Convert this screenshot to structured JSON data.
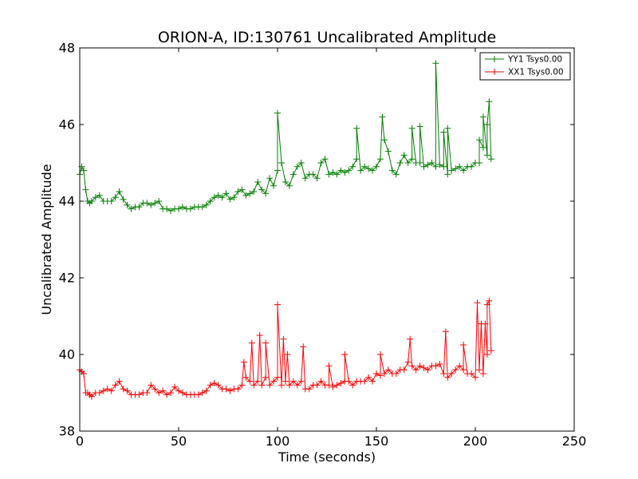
{
  "chart_data": {
    "type": "line",
    "title": "ORION-A, ID:130761 Uncalibrated Amplitude",
    "xlabel": "Time (seconds)",
    "ylabel": "Uncalibrated Amplitude",
    "xlim": [
      0,
      250
    ],
    "ylim": [
      38,
      48
    ],
    "x_ticks": [
      "0",
      "50",
      "100",
      "150",
      "200",
      "250"
    ],
    "y_ticks": [
      "38",
      "40",
      "42",
      "44",
      "46",
      "48"
    ],
    "grid": false,
    "legend_position": "top-right",
    "marker": "plus",
    "series": [
      {
        "name": "YY1 Tsys0.00",
        "color": "#008000",
        "x": [
          0,
          1,
          2,
          3,
          4,
          5,
          6,
          8,
          10,
          12,
          14,
          16,
          18,
          20,
          22,
          24,
          26,
          28,
          30,
          32,
          34,
          36,
          38,
          40,
          42,
          44,
          46,
          48,
          50,
          52,
          54,
          56,
          58,
          60,
          62,
          64,
          66,
          68,
          70,
          72,
          74,
          76,
          78,
          80,
          82,
          84,
          86,
          88,
          90,
          92,
          94,
          96,
          98,
          100,
          102,
          104,
          106,
          108,
          110,
          112,
          114,
          116,
          118,
          120,
          122,
          124,
          126,
          128,
          130,
          132,
          134,
          136,
          138,
          140,
          142,
          144,
          146,
          148,
          150,
          152,
          154,
          156,
          158,
          160,
          162,
          164,
          166,
          168,
          170,
          172,
          174,
          176,
          178,
          180,
          182,
          184,
          186,
          188,
          190,
          192,
          194,
          196,
          198,
          200,
          202,
          204,
          206,
          208
        ],
        "values": [
          44.7,
          44.9,
          44.8,
          44.3,
          44.0,
          43.95,
          44.0,
          44.1,
          44.15,
          44.0,
          44.0,
          44.0,
          44.1,
          44.25,
          44.05,
          43.9,
          43.8,
          43.85,
          43.85,
          43.95,
          43.95,
          43.9,
          43.95,
          44.0,
          43.8,
          43.8,
          43.75,
          43.8,
          43.8,
          43.85,
          43.8,
          43.8,
          43.85,
          43.85,
          43.85,
          43.9,
          44.0,
          44.1,
          44.15,
          44.1,
          44.2,
          44.05,
          44.1,
          44.25,
          44.3,
          44.15,
          44.2,
          44.25,
          44.5,
          44.3,
          44.2,
          44.6,
          44.4,
          44.8,
          45.0,
          44.5,
          44.4,
          44.7,
          44.9,
          45.0,
          44.6,
          44.7,
          44.7,
          44.6,
          45.0,
          45.1,
          44.7,
          44.75,
          44.7,
          44.8,
          44.75,
          44.8,
          44.9,
          45.1,
          44.8,
          44.9,
          44.85,
          44.8,
          44.9,
          45.1,
          45.6,
          45.3,
          44.8,
          44.7,
          45.0,
          45.2,
          45.0,
          45.1,
          45.0,
          45.0,
          44.9,
          44.95,
          45.0,
          44.9,
          44.95,
          44.9,
          44.7,
          44.8,
          44.85,
          44.9,
          44.8,
          44.9,
          44.9,
          45.0,
          45.0,
          45.4,
          45.2,
          45.1
        ],
        "spikes": [
          [
            100,
            46.3
          ],
          [
            140,
            45.9
          ],
          [
            153,
            46.2
          ],
          [
            168,
            45.9
          ],
          [
            172,
            45.95
          ],
          [
            180,
            47.6
          ],
          [
            184,
            45.8
          ],
          [
            186,
            45.9
          ],
          [
            202,
            45.6
          ],
          [
            204,
            46.2
          ],
          [
            206,
            46.0
          ],
          [
            207,
            46.6
          ]
        ]
      },
      {
        "name": "XX1 Tsys0.00",
        "color": "#ff0000",
        "x": [
          0,
          1,
          2,
          3,
          4,
          5,
          6,
          8,
          10,
          12,
          14,
          16,
          18,
          20,
          22,
          24,
          26,
          28,
          30,
          32,
          34,
          36,
          38,
          40,
          42,
          44,
          46,
          48,
          50,
          52,
          54,
          56,
          58,
          60,
          62,
          64,
          66,
          68,
          70,
          72,
          74,
          76,
          78,
          80,
          82,
          84,
          86,
          88,
          90,
          92,
          94,
          96,
          98,
          100,
          102,
          104,
          106,
          108,
          110,
          112,
          114,
          116,
          118,
          120,
          122,
          124,
          126,
          128,
          130,
          132,
          134,
          136,
          138,
          140,
          142,
          144,
          146,
          148,
          150,
          152,
          154,
          156,
          158,
          160,
          162,
          164,
          166,
          168,
          170,
          172,
          174,
          176,
          178,
          180,
          182,
          184,
          186,
          188,
          190,
          192,
          194,
          196,
          198,
          200,
          202,
          204,
          206,
          208
        ],
        "values": [
          39.6,
          39.55,
          39.5,
          39.0,
          39.0,
          38.95,
          38.9,
          39.0,
          39.0,
          39.05,
          39.1,
          39.05,
          39.2,
          39.3,
          39.1,
          39.05,
          38.95,
          38.95,
          38.95,
          39.0,
          39.0,
          39.2,
          39.1,
          39.0,
          39.05,
          38.95,
          39.0,
          39.15,
          39.05,
          39.0,
          38.95,
          38.95,
          38.95,
          38.95,
          39.0,
          39.05,
          39.2,
          39.25,
          39.2,
          39.1,
          39.1,
          39.05,
          39.1,
          39.1,
          39.2,
          39.4,
          39.3,
          39.2,
          39.3,
          39.2,
          39.4,
          39.2,
          39.3,
          39.4,
          39.2,
          39.3,
          39.2,
          39.3,
          39.2,
          39.3,
          39.1,
          39.1,
          39.2,
          39.2,
          39.3,
          39.2,
          39.2,
          39.15,
          39.2,
          39.25,
          39.3,
          39.3,
          39.2,
          39.3,
          39.3,
          39.3,
          39.4,
          39.3,
          39.5,
          39.45,
          39.5,
          39.6,
          39.5,
          39.5,
          39.6,
          39.6,
          39.8,
          39.7,
          39.6,
          39.7,
          39.65,
          39.6,
          39.7,
          39.7,
          39.75,
          39.5,
          39.4,
          39.5,
          39.6,
          39.7,
          39.6,
          39.5,
          39.5,
          39.4,
          39.6,
          39.5,
          40.0,
          40.1
        ],
        "spikes": [
          [
            83,
            39.8
          ],
          [
            87,
            40.3
          ],
          [
            91,
            40.5
          ],
          [
            94,
            40.3
          ],
          [
            100,
            41.3
          ],
          [
            103,
            40.4
          ],
          [
            105,
            40.0
          ],
          [
            113,
            40.2
          ],
          [
            126,
            39.7
          ],
          [
            134,
            40.0
          ],
          [
            152,
            40.0
          ],
          [
            167,
            40.4
          ],
          [
            185,
            40.6
          ],
          [
            194,
            40.25
          ],
          [
            201,
            41.35
          ],
          [
            203,
            40.8
          ],
          [
            205,
            40.8
          ],
          [
            206,
            41.3
          ],
          [
            207,
            41.4
          ]
        ]
      }
    ]
  }
}
